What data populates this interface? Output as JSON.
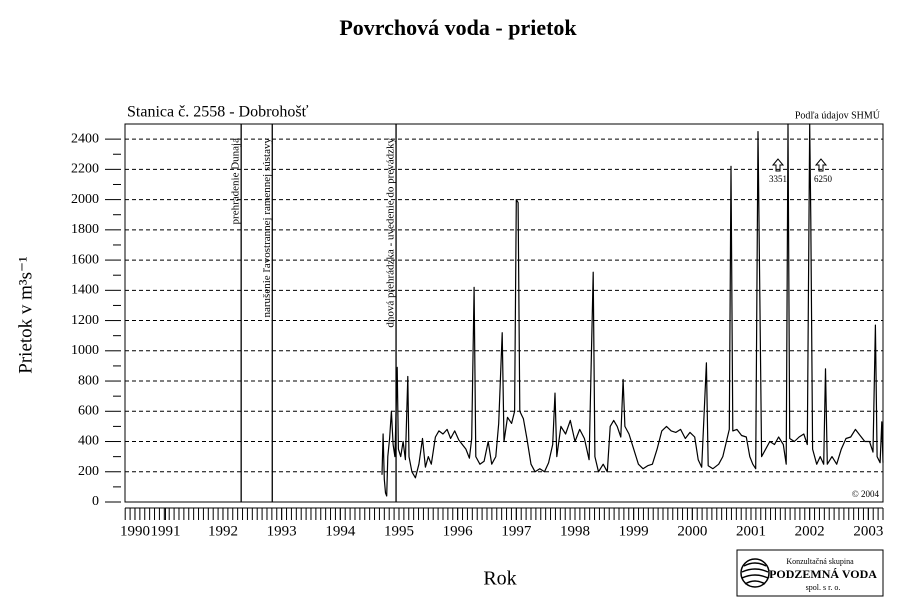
{
  "chart_data": {
    "type": "line",
    "title": "Povrchová voda - prietok",
    "subtitle": "Stanica č. 2558 - Dobrohošť",
    "x_label": "Rok",
    "y_label": "Prietok v m³s⁻¹",
    "xlim": [
      1990.33,
      2003.25
    ],
    "xticks": [
      {
        "value": 1990.5,
        "label": "1990"
      },
      {
        "value": 1991.02,
        "label": "1991"
      },
      1992,
      1993,
      1994,
      1995,
      1996,
      1997,
      1998,
      1999,
      2000,
      2001,
      2002,
      2003
    ],
    "ylim": [
      0,
      2500
    ],
    "yticks": [
      0,
      200,
      400,
      600,
      800,
      1000,
      1200,
      1400,
      1600,
      1800,
      2000,
      2200,
      2400
    ],
    "grid": true,
    "color": "#000000",
    "x": [
      1994.71,
      1994.73,
      1994.75,
      1994.77,
      1994.79,
      1994.81,
      1994.84,
      1994.87,
      1994.9,
      1994.93,
      1994.97,
      1994.99,
      1995.03,
      1995.07,
      1995.11,
      1995.15,
      1995.17,
      1995.22,
      1995.28,
      1995.34,
      1995.4,
      1995.45,
      1995.5,
      1995.55,
      1995.62,
      1995.68,
      1995.75,
      1995.82,
      1995.88,
      1995.95,
      1996.02,
      1996.08,
      1996.14,
      1996.2,
      1996.24,
      1996.28,
      1996.31,
      1996.38,
      1996.45,
      1996.52,
      1996.58,
      1996.65,
      1996.7,
      1996.76,
      1996.79,
      1996.85,
      1996.92,
      1996.97,
      1997,
      1997.03,
      1997.06,
      1997.12,
      1997.18,
      1997.25,
      1997.32,
      1997.4,
      1997.48,
      1997.55,
      1997.62,
      1997.66,
      1997.69,
      1997.76,
      1997.84,
      1997.92,
      1998,
      1998.08,
      1998.16,
      1998.24,
      1998.31,
      1998.34,
      1998.4,
      1998.48,
      1998.55,
      1998.6,
      1998.66,
      1998.72,
      1998.78,
      1998.82,
      1998.85,
      1998.92,
      1999,
      1999.08,
      1999.16,
      1999.24,
      1999.32,
      1999.4,
      1999.48,
      1999.56,
      1999.64,
      1999.72,
      1999.8,
      1999.88,
      1999.96,
      2000.04,
      2000.1,
      2000.16,
      2000.24,
      2000.27,
      2000.35,
      2000.45,
      2000.52,
      2000.58,
      2000.63,
      2000.66,
      2000.69,
      2000.76,
      2000.84,
      2000.92,
      2000.98,
      2001.03,
      2001.08,
      2001.12,
      2001.15,
      2001.18,
      2001.25,
      2001.32,
      2001.4,
      2001.47,
      2001.55,
      2001.6,
      2001.63,
      2001.66,
      2001.74,
      2001.82,
      2001.9,
      2001.96,
      2002,
      2002.02,
      2002.05,
      2002.12,
      2002.18,
      2002.24,
      2002.27,
      2002.3,
      2002.38,
      2002.46,
      2002.54,
      2002.62,
      2002.7,
      2002.78,
      2002.86,
      2002.94,
      2003.02,
      2003.08,
      2003.12,
      2003.15,
      2003.2,
      2003.23,
      2003.25
    ],
    "values": [
      180,
      450,
      150,
      60,
      40,
      300,
      420,
      600,
      380,
      300,
      890,
      350,
      300,
      400,
      280,
      830,
      300,
      200,
      160,
      250,
      420,
      230,
      300,
      250,
      430,
      470,
      450,
      480,
      420,
      470,
      410,
      380,
      350,
      290,
      420,
      1420,
      300,
      250,
      270,
      400,
      250,
      300,
      520,
      1120,
      400,
      560,
      520,
      600,
      2000,
      1980,
      600,
      550,
      420,
      250,
      200,
      220,
      200,
      260,
      380,
      720,
      300,
      500,
      450,
      540,
      400,
      480,
      420,
      280,
      1520,
      300,
      200,
      250,
      200,
      500,
      540,
      500,
      430,
      810,
      500,
      450,
      350,
      250,
      220,
      240,
      250,
      350,
      470,
      500,
      470,
      460,
      480,
      420,
      460,
      430,
      280,
      230,
      920,
      240,
      220,
      250,
      300,
      400,
      480,
      2220,
      470,
      480,
      440,
      430,
      300,
      250,
      220,
      2450,
      1380,
      300,
      350,
      400,
      380,
      430,
      380,
      250,
      2500,
      420,
      400,
      430,
      450,
      380,
      2500,
      1870,
      350,
      250,
      300,
      250,
      880,
      250,
      300,
      250,
      350,
      420,
      430,
      480,
      440,
      400,
      400,
      330,
      1170,
      300,
      260,
      530,
      260
    ],
    "events": [
      {
        "x": 1992.31,
        "label": "prehradenie Dunaja"
      },
      {
        "x": 1992.84,
        "label": "narušenie ľavostrannej ramennej sústavy"
      },
      {
        "x": 1994.95,
        "label": "dnová prehrádzka - uvedenie do prevádzky"
      }
    ],
    "annotations": {
      "source": "Podľa údajov SHMÚ",
      "peaks": [
        "3351",
        "6250"
      ],
      "copyright": "© 2004"
    },
    "logo": {
      "line1": "Konzultačná skupina",
      "line2": "PODZEMNÁ VODA",
      "line3": "spol. s r. o."
    }
  }
}
